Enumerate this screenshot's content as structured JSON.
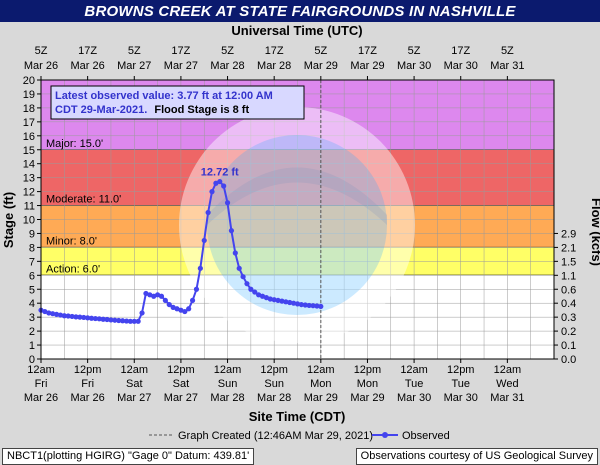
{
  "title": "BROWNS CREEK AT STATE FAIRGROUNDS IN NASHVILLE",
  "top_axis_title": "Universal Time (UTC)",
  "bottom_axis_title": "Site Time (CDT)",
  "left_axis_title": "Stage (ft)",
  "right_axis_title": "Flow (kcfs)",
  "annotation": {
    "line1": "Latest observed value: 3.77 ft at 12:00 AM",
    "line2a": "CDT 29-Mar-2021.",
    "line2b": "Flood Stage is 8 ft"
  },
  "peak_label": "12.72 ft",
  "legend": {
    "graph_created": "Graph Created (12:46AM Mar 29, 2021)",
    "observed": "Observed"
  },
  "footer_left": "NBCT1(plotting HGIRG) \"Gage 0\" Datum: 439.81'",
  "footer_right": "Observations courtesy of US Geological Survey",
  "colors": {
    "major": "#dd88ee",
    "moderate": "#ee6666",
    "flood": "#ffaa55",
    "action": "#ffff66",
    "normal": "#ffffff",
    "observed": "#4444ee",
    "title_bg": "#0b1a6e"
  },
  "chart_data": {
    "type": "line",
    "ylim": [
      0,
      20
    ],
    "xlim": [
      0,
      132
    ],
    "flood_categories": [
      {
        "label": "Major: 15.0'",
        "from": 15,
        "to": 20,
        "color": "#dd88ee"
      },
      {
        "label": "Moderate: 11.0'",
        "from": 11,
        "to": 15,
        "color": "#ee6666"
      },
      {
        "label": "Minor: 8.0'",
        "from": 8,
        "to": 11,
        "color": "#ffaa55"
      },
      {
        "label": "Action: 6.0'",
        "from": 6,
        "to": 8,
        "color": "#ffff66"
      }
    ],
    "y_ticks": [
      0,
      1,
      2,
      3,
      4,
      5,
      6,
      7,
      8,
      9,
      10,
      11,
      12,
      13,
      14,
      15,
      16,
      17,
      18,
      19,
      20
    ],
    "bottom_ticks": [
      {
        "t": 0,
        "l1": "12am",
        "l2": "Fri",
        "l3": "Mar 26"
      },
      {
        "t": 12,
        "l1": "12pm",
        "l2": "Fri",
        "l3": "Mar 26"
      },
      {
        "t": 24,
        "l1": "12am",
        "l2": "Sat",
        "l3": "Mar 27"
      },
      {
        "t": 36,
        "l1": "12pm",
        "l2": "Sat",
        "l3": "Mar 27"
      },
      {
        "t": 48,
        "l1": "12am",
        "l2": "Sun",
        "l3": "Mar 28"
      },
      {
        "t": 60,
        "l1": "12pm",
        "l2": "Sun",
        "l3": "Mar 28"
      },
      {
        "t": 72,
        "l1": "12am",
        "l2": "Mon",
        "l3": "Mar 29"
      },
      {
        "t": 84,
        "l1": "12pm",
        "l2": "Mon",
        "l3": "Mar 29"
      },
      {
        "t": 96,
        "l1": "12am",
        "l2": "Tue",
        "l3": "Mar 30"
      },
      {
        "t": 108,
        "l1": "12pm",
        "l2": "Tue",
        "l3": "Mar 30"
      },
      {
        "t": 120,
        "l1": "12am",
        "l2": "Wed",
        "l3": "Mar 31"
      }
    ],
    "top_ticks": [
      {
        "t": 0,
        "l1": "5Z",
        "l2": "Mar 26"
      },
      {
        "t": 12,
        "l1": "17Z",
        "l2": "Mar 26"
      },
      {
        "t": 24,
        "l1": "5Z",
        "l2": "Mar 27"
      },
      {
        "t": 36,
        "l1": "17Z",
        "l2": "Mar 27"
      },
      {
        "t": 48,
        "l1": "5Z",
        "l2": "Mar 28"
      },
      {
        "t": 60,
        "l1": "17Z",
        "l2": "Mar 28"
      },
      {
        "t": 72,
        "l1": "5Z",
        "l2": "Mar 29"
      },
      {
        "t": 84,
        "l1": "17Z",
        "l2": "Mar 29"
      },
      {
        "t": 96,
        "l1": "5Z",
        "l2": "Mar 30"
      },
      {
        "t": 108,
        "l1": "17Z",
        "l2": "Mar 30"
      },
      {
        "t": 120,
        "l1": "5Z",
        "l2": "Mar 31"
      }
    ],
    "flow_ticks": [
      {
        "stage": 0,
        "label": "0.0"
      },
      {
        "stage": 1,
        "label": "0.1"
      },
      {
        "stage": 2,
        "label": "0.2"
      },
      {
        "stage": 3,
        "label": "0.3"
      },
      {
        "stage": 4,
        "label": "0.4"
      },
      {
        "stage": 5,
        "label": "0.6"
      },
      {
        "stage": 6,
        "label": "1.1"
      },
      {
        "stage": 7,
        "label": "1.5"
      },
      {
        "stage": 8,
        "label": "2.1"
      },
      {
        "stage": 9,
        "label": "2.9"
      }
    ],
    "graph_created_t": 72,
    "series": [
      {
        "name": "Observed",
        "x": [
          0,
          1,
          2,
          3,
          4,
          5,
          6,
          7,
          8,
          9,
          10,
          11,
          12,
          13,
          14,
          15,
          16,
          17,
          18,
          19,
          20,
          21,
          22,
          23,
          24,
          25,
          26,
          27,
          28,
          29,
          30,
          31,
          32,
          33,
          34,
          35,
          36,
          37,
          38,
          39,
          40,
          41,
          42,
          43,
          44,
          45,
          46,
          47,
          48,
          49,
          50,
          51,
          52,
          53,
          54,
          55,
          56,
          57,
          58,
          59,
          60,
          61,
          62,
          63,
          64,
          65,
          66,
          67,
          68,
          69,
          70,
          71,
          72
        ],
        "y": [
          3.5,
          3.4,
          3.3,
          3.25,
          3.2,
          3.15,
          3.1,
          3.08,
          3.05,
          3.02,
          3.0,
          2.98,
          2.95,
          2.92,
          2.9,
          2.88,
          2.85,
          2.83,
          2.8,
          2.78,
          2.76,
          2.74,
          2.72,
          2.7,
          2.7,
          2.7,
          3.3,
          4.7,
          4.6,
          4.5,
          4.6,
          4.5,
          4.2,
          3.9,
          3.7,
          3.6,
          3.5,
          3.4,
          3.6,
          4.2,
          5.0,
          6.5,
          8.5,
          10.5,
          12.0,
          12.6,
          12.72,
          12.4,
          11.2,
          9.2,
          7.6,
          6.5,
          5.9,
          5.4,
          5.0,
          4.8,
          4.6,
          4.5,
          4.4,
          4.3,
          4.25,
          4.2,
          4.15,
          4.1,
          4.05,
          4.0,
          3.95,
          3.9,
          3.87,
          3.84,
          3.82,
          3.8,
          3.77
        ]
      }
    ]
  }
}
